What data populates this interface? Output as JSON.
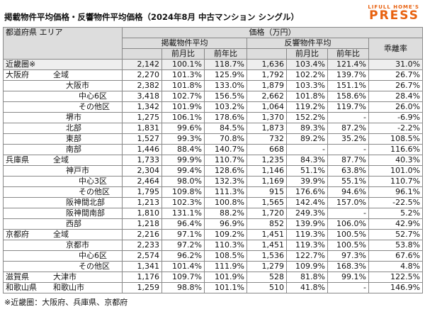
{
  "header": {
    "title": "掲載物件平均価格・反響物件平均価格（2024年8月 中古マンション シングル）",
    "logo_top": "LIFULL HOME'S",
    "logo_bottom": "PRESS"
  },
  "table": {
    "columns": {
      "region": "都道府県 エリア",
      "price": "価格（万円）",
      "listed": "掲載物件平均",
      "inquired": "反響物件平均",
      "gap": "乖離率",
      "mom": "前月比",
      "yoy": "前年比"
    },
    "rows": [
      [
        "近畿圏※",
        null,
        null,
        "2,142",
        "100.1%",
        "118.7%",
        "1,636",
        "103.4%",
        "121.4%",
        "31.0%"
      ],
      [
        "大阪府",
        "全域",
        null,
        "2,270",
        "101.3%",
        "125.9%",
        "1,792",
        "102.2%",
        "139.7%",
        "26.7%"
      ],
      [
        null,
        "大阪市",
        null,
        "2,382",
        "101.8%",
        "133.0%",
        "1,879",
        "103.3%",
        "151.1%",
        "26.7%"
      ],
      [
        null,
        null,
        "中心6区",
        "3,418",
        "102.7%",
        "156.5%",
        "2,662",
        "101.8%",
        "158.6%",
        "28.4%"
      ],
      [
        null,
        null,
        "その他区",
        "1,342",
        "101.9%",
        "103.2%",
        "1,064",
        "119.2%",
        "119.7%",
        "26.0%"
      ],
      [
        null,
        "堺市",
        null,
        "1,275",
        "106.1%",
        "178.6%",
        "1,370",
        "152.2%",
        "-",
        "-6.9%"
      ],
      [
        null,
        "北部",
        null,
        "1,831",
        "99.6%",
        "84.5%",
        "1,873",
        "89.3%",
        "87.2%",
        "-2.2%"
      ],
      [
        null,
        "東部",
        null,
        "1,527",
        "99.3%",
        "70.8%",
        "732",
        "89.2%",
        "35.2%",
        "108.5%"
      ],
      [
        null,
        "南部",
        null,
        "1,446",
        "88.4%",
        "140.7%",
        "668",
        "-",
        "-",
        "116.6%"
      ],
      [
        "兵庫県",
        "全域",
        null,
        "1,733",
        "99.9%",
        "110.7%",
        "1,235",
        "84.3%",
        "87.7%",
        "40.3%"
      ],
      [
        null,
        "神戸市",
        null,
        "2,304",
        "99.4%",
        "128.6%",
        "1,146",
        "51.1%",
        "63.8%",
        "101.0%"
      ],
      [
        null,
        null,
        "中心3区",
        "2,464",
        "98.0%",
        "132.3%",
        "1,169",
        "39.9%",
        "55.1%",
        "110.7%"
      ],
      [
        null,
        null,
        "その他区",
        "1,795",
        "109.8%",
        "111.3%",
        "915",
        "176.6%",
        "94.6%",
        "96.1%"
      ],
      [
        null,
        "阪神間北部",
        null,
        "1,213",
        "102.3%",
        "100.8%",
        "1,565",
        "142.4%",
        "157.0%",
        "-22.5%"
      ],
      [
        null,
        "阪神間南部",
        null,
        "1,810",
        "131.1%",
        "88.2%",
        "1,720",
        "249.3%",
        "-",
        "5.2%"
      ],
      [
        null,
        "西部",
        null,
        "1,218",
        "96.4%",
        "96.9%",
        "852",
        "139.9%",
        "106.0%",
        "42.9%"
      ],
      [
        "京都府",
        "全域",
        null,
        "2,216",
        "97.1%",
        "109.2%",
        "1,451",
        "119.3%",
        "100.5%",
        "52.7%"
      ],
      [
        null,
        "京都市",
        null,
        "2,233",
        "97.2%",
        "110.3%",
        "1,451",
        "119.3%",
        "100.5%",
        "53.8%"
      ],
      [
        null,
        null,
        "中心6区",
        "2,574",
        "96.2%",
        "108.5%",
        "1,536",
        "122.7%",
        "97.3%",
        "67.6%"
      ],
      [
        null,
        null,
        "その他区",
        "1,341",
        "101.4%",
        "111.9%",
        "1,279",
        "109.9%",
        "168.3%",
        "4.8%"
      ],
      [
        "滋賀県",
        "大津市",
        null,
        "1,176",
        "109.7%",
        "101.9%",
        "528",
        "81.8%",
        "99.1%",
        "122.5%"
      ],
      [
        "和歌山県",
        "和歌山市",
        null,
        "1,259",
        "98.8%",
        "101.1%",
        "510",
        "41.8%",
        "-",
        "146.9%"
      ]
    ]
  },
  "footnote": "※近畿圏：大阪府、兵庫県、京都府"
}
